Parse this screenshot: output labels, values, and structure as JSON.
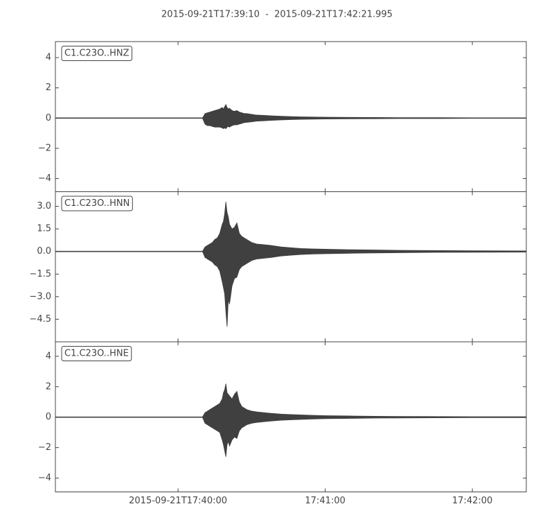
{
  "title": "2015-09-21T17:39:10  -  2015-09-21T17:42:21.995",
  "xlim": [
    0,
    191.995
  ],
  "xticks": [
    {
      "value": 50,
      "label": "2015-09-21T17:40:00"
    },
    {
      "value": 110,
      "label": "17:41:00"
    },
    {
      "value": 170,
      "label": "17:42:00"
    }
  ],
  "chart_data": [
    {
      "type": "area",
      "label": "C1.C23O..HNZ",
      "color": "#404040",
      "ylim": [
        -4.87,
        5.06
      ],
      "yticks": [
        {
          "value": -4,
          "label": "−4"
        },
        {
          "value": -2,
          "label": "−2"
        },
        0,
        2,
        4
      ],
      "x": [
        0,
        60,
        61,
        62,
        63,
        64,
        65,
        66,
        67,
        68,
        68.5,
        69,
        69.5,
        70,
        70.5,
        71,
        72,
        73,
        74,
        75,
        76,
        77,
        78,
        80,
        82,
        85,
        88,
        92,
        96,
        100,
        105,
        110,
        120,
        130,
        140,
        155,
        170,
        191.995
      ],
      "upper": [
        0.02,
        0.02,
        0.3,
        0.35,
        0.4,
        0.45,
        0.5,
        0.55,
        0.6,
        0.7,
        0.6,
        0.75,
        0.9,
        0.7,
        0.6,
        0.65,
        0.5,
        0.45,
        0.5,
        0.4,
        0.35,
        0.3,
        0.3,
        0.25,
        0.2,
        0.18,
        0.15,
        0.12,
        0.1,
        0.08,
        0.07,
        0.06,
        0.05,
        0.04,
        0.03,
        0.03,
        0.02,
        0.02
      ],
      "lower": [
        -0.02,
        -0.02,
        -0.4,
        -0.5,
        -0.5,
        -0.55,
        -0.6,
        -0.6,
        -0.6,
        -0.65,
        -0.7,
        -0.65,
        -0.7,
        -0.6,
        -0.55,
        -0.6,
        -0.5,
        -0.45,
        -0.45,
        -0.4,
        -0.35,
        -0.3,
        -0.28,
        -0.25,
        -0.2,
        -0.18,
        -0.15,
        -0.12,
        -0.1,
        -0.08,
        -0.07,
        -0.06,
        -0.05,
        -0.04,
        -0.03,
        -0.03,
        -0.02,
        -0.02
      ]
    },
    {
      "type": "area",
      "label": "C1.C23O..HNN",
      "color": "#404040",
      "ylim": [
        -6.0,
        3.97
      ],
      "yticks": [
        {
          "value": -4.5,
          "label": "−4.5"
        },
        {
          "value": -3,
          "label": "−3.0"
        },
        {
          "value": -1.5,
          "label": "−1.5"
        },
        {
          "value": 0,
          "label": "0.0"
        },
        1.5,
        {
          "value": 3,
          "label": "3.0"
        }
      ],
      "x": [
        0,
        60,
        61,
        62,
        63,
        64,
        65,
        66,
        67,
        68,
        68.5,
        69,
        69.5,
        70,
        70.5,
        71,
        72,
        73,
        74,
        75,
        76,
        77,
        78,
        80,
        82,
        85,
        88,
        92,
        96,
        100,
        105,
        110,
        120,
        130,
        140,
        155,
        170,
        191.995
      ],
      "upper": [
        0.02,
        0.02,
        0.3,
        0.4,
        0.5,
        0.6,
        0.8,
        0.9,
        1.2,
        1.8,
        2.0,
        2.5,
        3.3,
        2.6,
        2.3,
        1.8,
        1.5,
        1.6,
        1.9,
        1.2,
        1.0,
        0.9,
        0.8,
        0.6,
        0.5,
        0.45,
        0.4,
        0.3,
        0.25,
        0.2,
        0.17,
        0.15,
        0.12,
        0.1,
        0.08,
        0.06,
        0.05,
        0.04
      ],
      "lower": [
        -0.02,
        -0.02,
        -0.4,
        -0.5,
        -0.6,
        -0.7,
        -0.9,
        -1.0,
        -1.3,
        -2.0,
        -2.4,
        -2.8,
        -4.0,
        -5.0,
        -3.2,
        -3.5,
        -2.3,
        -1.8,
        -1.7,
        -1.2,
        -1.0,
        -0.9,
        -0.8,
        -0.6,
        -0.5,
        -0.45,
        -0.4,
        -0.3,
        -0.25,
        -0.2,
        -0.17,
        -0.15,
        -0.12,
        -0.1,
        -0.08,
        -0.06,
        -0.05,
        -0.04
      ]
    },
    {
      "type": "area",
      "label": "C1.C23O..HNE",
      "color": "#404040",
      "ylim": [
        -4.91,
        4.95
      ],
      "yticks": [
        {
          "value": -4,
          "label": "−4"
        },
        {
          "value": -2,
          "label": "−2"
        },
        0,
        2,
        4
      ],
      "x": [
        0,
        60,
        61,
        62,
        63,
        64,
        65,
        66,
        67,
        68,
        68.5,
        69,
        69.5,
        70,
        70.5,
        71,
        72,
        73,
        74,
        75,
        76,
        77,
        78,
        80,
        82,
        85,
        88,
        92,
        96,
        100,
        105,
        110,
        120,
        130,
        140,
        155,
        170,
        191.995
      ],
      "upper": [
        0.02,
        0.02,
        0.3,
        0.4,
        0.5,
        0.6,
        0.7,
        0.8,
        0.9,
        1.2,
        1.6,
        1.8,
        2.2,
        1.6,
        1.5,
        1.4,
        1.2,
        1.5,
        1.7,
        1.0,
        0.7,
        0.6,
        0.5,
        0.4,
        0.35,
        0.3,
        0.25,
        0.2,
        0.17,
        0.15,
        0.12,
        0.1,
        0.08,
        0.06,
        0.05,
        0.04,
        0.03,
        0.03
      ],
      "lower": [
        -0.02,
        -0.02,
        -0.4,
        -0.5,
        -0.6,
        -0.7,
        -0.8,
        -0.9,
        -1.0,
        -1.5,
        -1.8,
        -2.2,
        -2.6,
        -1.8,
        -1.6,
        -1.9,
        -1.5,
        -1.3,
        -1.4,
        -0.9,
        -0.7,
        -0.6,
        -0.5,
        -0.4,
        -0.35,
        -0.3,
        -0.25,
        -0.2,
        -0.17,
        -0.15,
        -0.12,
        -0.1,
        -0.08,
        -0.06,
        -0.05,
        -0.04,
        -0.03,
        -0.03
      ]
    }
  ]
}
